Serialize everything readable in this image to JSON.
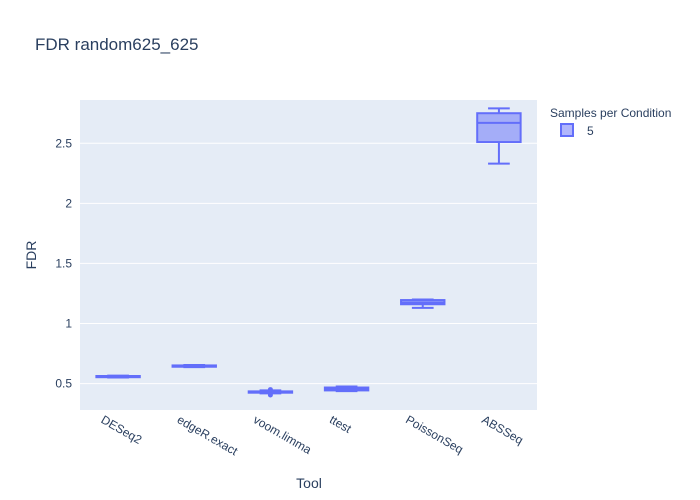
{
  "chart_data": {
    "type": "box",
    "title": "FDR random625_625",
    "xlabel": "Tool",
    "ylabel": "FDR",
    "categories": [
      "DESeq2",
      "edgeR.exact",
      "voom.limma",
      "ttest",
      "PoissonSeq",
      "ABSSeq"
    ],
    "ylim": [
      0.28,
      2.86
    ],
    "yticks": [
      0.5,
      1,
      1.5,
      2,
      2.5
    ],
    "ytick_labels": [
      "0.5",
      "1",
      "1.5",
      "2",
      "2.5"
    ],
    "grid": true,
    "legend": {
      "title": "Samples per Condition",
      "position": "top-right"
    },
    "series": [
      {
        "name": "5",
        "color": "#636efa",
        "boxes": [
          {
            "category": "DESeq2",
            "min": 0.55,
            "q1": 0.553,
            "median": 0.557,
            "q3": 0.563,
            "max": 0.566,
            "outliers": []
          },
          {
            "category": "edgeR.exact",
            "min": 0.637,
            "q1": 0.64,
            "median": 0.644,
            "q3": 0.651,
            "max": 0.655,
            "outliers": []
          },
          {
            "category": "voom.limma",
            "min": 0.418,
            "q1": 0.424,
            "median": 0.43,
            "q3": 0.435,
            "max": 0.443,
            "outliers": [
              0.405,
              0.45
            ]
          },
          {
            "category": "ttest",
            "min": 0.437,
            "q1": 0.443,
            "median": 0.453,
            "q3": 0.467,
            "max": 0.476,
            "outliers": []
          },
          {
            "category": "PoissonSeq",
            "min": 1.13,
            "q1": 1.16,
            "median": 1.175,
            "q3": 1.195,
            "max": 1.2,
            "outliers": []
          },
          {
            "category": "ABSSeq",
            "min": 2.33,
            "q1": 2.51,
            "median": 2.67,
            "q3": 2.75,
            "max": 2.79,
            "outliers": []
          }
        ]
      }
    ]
  }
}
